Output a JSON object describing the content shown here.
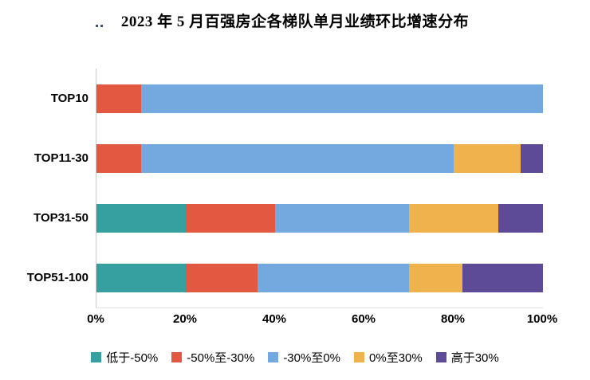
{
  "title": "2023 年 5 月百强房企各梯队单月业绩环比增速分布",
  "chart_data": {
    "type": "bar",
    "orientation": "horizontal",
    "stacked": true,
    "title": "2023 年 5 月百强房企各梯队单月业绩环比增速分布",
    "categories": [
      "TOP10",
      "TOP11-30",
      "TOP31-50",
      "TOP51-100"
    ],
    "series": [
      {
        "name": "低于-50%",
        "color": "#369f9f",
        "values": [
          0,
          0,
          20,
          20
        ]
      },
      {
        "name": "-50%至-30%",
        "color": "#e25840",
        "values": [
          10,
          10,
          20,
          16
        ]
      },
      {
        "name": "-30%至0%",
        "color": "#73a9de",
        "values": [
          90,
          70,
          30,
          34
        ]
      },
      {
        "name": "0%至30%",
        "color": "#efb24c",
        "values": [
          0,
          15,
          20,
          12
        ]
      },
      {
        "name": "高于30%",
        "color": "#5e4b97",
        "values": [
          0,
          5,
          10,
          18
        ]
      }
    ],
    "x_ticks": [
      "0%",
      "20%",
      "40%",
      "60%",
      "80%",
      "100%"
    ],
    "xlim": [
      0,
      100
    ],
    "xlabel": "",
    "ylabel": "",
    "grid": false,
    "legend_position": "bottom"
  }
}
